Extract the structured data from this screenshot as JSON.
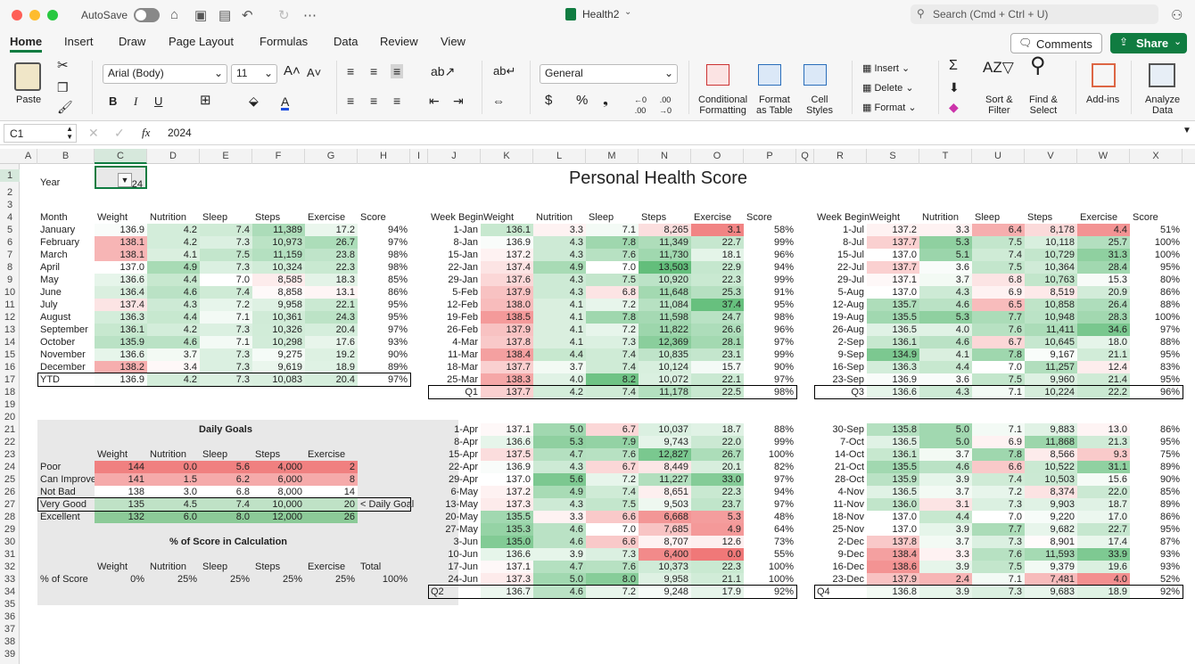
{
  "titlebar": {
    "autosave": "AutoSave",
    "doc": "Health2",
    "search": "Search (Cmd + Ctrl + U)"
  },
  "tabs": [
    "Home",
    "Insert",
    "Draw",
    "Page Layout",
    "Formulas",
    "Data",
    "Review",
    "View"
  ],
  "buttons": {
    "comments": "Comments",
    "share": "Share"
  },
  "ribbon": {
    "paste": "Paste",
    "font": "Arial (Body)",
    "size": "11",
    "number_format": "General",
    "cond1": "Conditional",
    "cond2": "Formatting",
    "fmt1": "Format",
    "fmt2": "as Table",
    "cell1": "Cell",
    "cell2": "Styles",
    "insert": "Insert",
    "delete": "Delete",
    "format": "Format",
    "sort1": "Sort &",
    "sort2": "Filter",
    "find1": "Find &",
    "find2": "Select",
    "addins": "Add-ins",
    "analyze1": "Analyze",
    "analyze2": "Data"
  },
  "formula": {
    "cell": "C1",
    "fx": "fx",
    "value": "2024"
  },
  "columns": [
    "A",
    "B",
    "C",
    "D",
    "E",
    "F",
    "G",
    "H",
    "I",
    "J",
    "K",
    "L",
    "M",
    "N",
    "O",
    "P",
    "Q",
    "R",
    "S",
    "T",
    "U",
    "V",
    "W",
    "X"
  ],
  "sheet": {
    "year_label": "Year",
    "year_value": "2024",
    "title": "Personal Health Score",
    "headers": [
      "Month",
      "Weight",
      "Nutrition",
      "Sleep",
      "Steps",
      "Exercise",
      "Score"
    ],
    "week_headers": [
      "Week Begin",
      "Weight",
      "Nutrition",
      "Sleep",
      "Steps",
      "Exercise",
      "Score"
    ],
    "months": [
      [
        "January",
        "136.9",
        "4.2",
        "7.4",
        "11,389",
        "17.2",
        "94%"
      ],
      [
        "February",
        "138.1",
        "4.2",
        "7.3",
        "10,973",
        "26.7",
        "97%"
      ],
      [
        "March",
        "138.1",
        "4.1",
        "7.5",
        "11,159",
        "23.8",
        "98%"
      ],
      [
        "April",
        "137.0",
        "4.9",
        "7.3",
        "10,324",
        "22.3",
        "98%"
      ],
      [
        "May",
        "136.6",
        "4.4",
        "7.0",
        "8,585",
        "18.3",
        "85%"
      ],
      [
        "June",
        "136.4",
        "4.6",
        "7.4",
        "8,858",
        "13.1",
        "86%"
      ],
      [
        "July",
        "137.4",
        "4.3",
        "7.2",
        "9,958",
        "22.1",
        "95%"
      ],
      [
        "August",
        "136.3",
        "4.4",
        "7.1",
        "10,361",
        "24.3",
        "95%"
      ],
      [
        "September",
        "136.1",
        "4.2",
        "7.3",
        "10,326",
        "20.4",
        "97%"
      ],
      [
        "October",
        "135.9",
        "4.6",
        "7.1",
        "10,298",
        "17.6",
        "93%"
      ],
      [
        "November",
        "136.6",
        "3.7",
        "7.3",
        "9,275",
        "19.2",
        "90%"
      ],
      [
        "December",
        "138.2",
        "3.4",
        "7.3",
        "9,619",
        "18.9",
        "89%"
      ],
      [
        "YTD",
        "136.9",
        "4.2",
        "7.3",
        "10,083",
        "20.4",
        "97%"
      ]
    ],
    "q1": [
      [
        "1-Jan",
        "136.1",
        "3.3",
        "7.1",
        "8,265",
        "3.1",
        "58%"
      ],
      [
        "8-Jan",
        "136.9",
        "4.3",
        "7.8",
        "11,349",
        "22.7",
        "99%"
      ],
      [
        "15-Jan",
        "137.2",
        "4.3",
        "7.6",
        "11,730",
        "18.1",
        "96%"
      ],
      [
        "22-Jan",
        "137.4",
        "4.9",
        "7.0",
        "13,503",
        "22.9",
        "94%"
      ],
      [
        "29-Jan",
        "137.6",
        "4.3",
        "7.5",
        "10,920",
        "22.3",
        "99%"
      ],
      [
        "5-Feb",
        "137.9",
        "4.3",
        "6.8",
        "11,648",
        "25.3",
        "91%"
      ],
      [
        "12-Feb",
        "138.0",
        "4.1",
        "7.2",
        "11,084",
        "37.4",
        "95%"
      ],
      [
        "19-Feb",
        "138.5",
        "4.1",
        "7.8",
        "11,598",
        "24.7",
        "98%"
      ],
      [
        "26-Feb",
        "137.9",
        "4.1",
        "7.2",
        "11,822",
        "26.6",
        "96%"
      ],
      [
        "4-Mar",
        "137.8",
        "4.1",
        "7.3",
        "12,369",
        "28.1",
        "97%"
      ],
      [
        "11-Mar",
        "138.4",
        "4.4",
        "7.4",
        "10,835",
        "23.1",
        "99%"
      ],
      [
        "18-Mar",
        "137.7",
        "3.7",
        "7.4",
        "10,124",
        "15.7",
        "90%"
      ],
      [
        "25-Mar",
        "138.3",
        "4.0",
        "8.2",
        "10,072",
        "22.1",
        "97%"
      ],
      [
        "Q1",
        "137.7",
        "4.2",
        "7.4",
        "11,178",
        "22.5",
        "98%"
      ]
    ],
    "q2": [
      [
        "1-Apr",
        "137.1",
        "5.0",
        "6.7",
        "10,037",
        "18.7",
        "88%"
      ],
      [
        "8-Apr",
        "136.6",
        "5.3",
        "7.9",
        "9,743",
        "22.0",
        "99%"
      ],
      [
        "15-Apr",
        "137.5",
        "4.7",
        "7.6",
        "12,827",
        "26.7",
        "100%"
      ],
      [
        "22-Apr",
        "136.9",
        "4.3",
        "6.7",
        "8,449",
        "20.1",
        "82%"
      ],
      [
        "29-Apr",
        "137.0",
        "5.6",
        "7.2",
        "11,227",
        "33.0",
        "97%"
      ],
      [
        "6-May",
        "137.2",
        "4.9",
        "7.4",
        "8,651",
        "22.3",
        "94%"
      ],
      [
        "13-May",
        "137.3",
        "4.3",
        "7.5",
        "9,503",
        "23.7",
        "97%"
      ],
      [
        "20-May",
        "135.5",
        "3.3",
        "6.6",
        "6,668",
        "5.3",
        "48%"
      ],
      [
        "27-May",
        "135.3",
        "4.6",
        "7.0",
        "7,685",
        "4.9",
        "64%"
      ],
      [
        "3-Jun",
        "135.0",
        "4.6",
        "6.6",
        "8,707",
        "12.6",
        "73%"
      ],
      [
        "10-Jun",
        "136.6",
        "3.9",
        "7.3",
        "6,400",
        "0.0",
        "55%"
      ],
      [
        "17-Jun",
        "137.1",
        "4.7",
        "7.6",
        "10,373",
        "22.3",
        "100%"
      ],
      [
        "24-Jun",
        "137.3",
        "5.0",
        "8.0",
        "9,958",
        "21.1",
        "100%"
      ],
      [
        "Q2",
        "136.7",
        "4.6",
        "7.2",
        "9,248",
        "17.9",
        "92%"
      ]
    ],
    "q3": [
      [
        "1-Jul",
        "137.2",
        "3.3",
        "6.4",
        "8,178",
        "4.4",
        "51%"
      ],
      [
        "8-Jul",
        "137.7",
        "5.3",
        "7.5",
        "10,118",
        "25.7",
        "100%"
      ],
      [
        "15-Jul",
        "137.0",
        "5.1",
        "7.4",
        "10,729",
        "31.3",
        "100%"
      ],
      [
        "22-Jul",
        "137.7",
        "3.6",
        "7.5",
        "10,364",
        "28.4",
        "95%"
      ],
      [
        "29-Jul",
        "137.1",
        "3.7",
        "6.8",
        "10,763",
        "15.3",
        "80%"
      ],
      [
        "5-Aug",
        "137.0",
        "4.3",
        "6.9",
        "8,519",
        "20.9",
        "86%"
      ],
      [
        "12-Aug",
        "135.7",
        "4.6",
        "6.5",
        "10,858",
        "26.4",
        "88%"
      ],
      [
        "19-Aug",
        "135.5",
        "5.3",
        "7.7",
        "10,948",
        "28.3",
        "100%"
      ],
      [
        "26-Aug",
        "136.5",
        "4.0",
        "7.6",
        "11,411",
        "34.6",
        "97%"
      ],
      [
        "2-Sep",
        "136.1",
        "4.6",
        "6.7",
        "10,645",
        "18.0",
        "88%"
      ],
      [
        "9-Sep",
        "134.9",
        "4.1",
        "7.8",
        "9,167",
        "21.1",
        "95%"
      ],
      [
        "16-Sep",
        "136.3",
        "4.4",
        "7.0",
        "11,257",
        "12.4",
        "83%"
      ],
      [
        "23-Sep",
        "136.9",
        "3.6",
        "7.5",
        "9,960",
        "21.4",
        "95%"
      ],
      [
        "Q3",
        "136.6",
        "4.3",
        "7.1",
        "10,224",
        "22.2",
        "96%"
      ]
    ],
    "q4": [
      [
        "30-Sep",
        "135.8",
        "5.0",
        "7.1",
        "9,883",
        "13.0",
        "86%"
      ],
      [
        "7-Oct",
        "136.5",
        "5.0",
        "6.9",
        "11,868",
        "21.3",
        "95%"
      ],
      [
        "14-Oct",
        "136.1",
        "3.7",
        "7.8",
        "8,566",
        "9.3",
        "75%"
      ],
      [
        "21-Oct",
        "135.5",
        "4.6",
        "6.6",
        "10,522",
        "31.1",
        "89%"
      ],
      [
        "28-Oct",
        "135.9",
        "3.9",
        "7.4",
        "10,503",
        "15.6",
        "90%"
      ],
      [
        "4-Nov",
        "136.5",
        "3.7",
        "7.2",
        "8,374",
        "22.0",
        "85%"
      ],
      [
        "11-Nov",
        "136.0",
        "3.1",
        "7.3",
        "9,903",
        "18.7",
        "89%"
      ],
      [
        "18-Nov",
        "137.0",
        "4.4",
        "7.0",
        "9,220",
        "17.0",
        "86%"
      ],
      [
        "25-Nov",
        "137.0",
        "3.9",
        "7.7",
        "9,682",
        "22.7",
        "95%"
      ],
      [
        "2-Dec",
        "137.8",
        "3.7",
        "7.3",
        "8,901",
        "17.4",
        "87%"
      ],
      [
        "9-Dec",
        "138.4",
        "3.3",
        "7.6",
        "11,593",
        "33.9",
        "93%"
      ],
      [
        "16-Dec",
        "138.6",
        "3.9",
        "7.5",
        "9,379",
        "19.6",
        "93%"
      ],
      [
        "23-Dec",
        "137.9",
        "2.4",
        "7.1",
        "7,481",
        "4.0",
        "52%"
      ],
      [
        "Q4",
        "136.8",
        "3.9",
        "7.3",
        "9,683",
        "18.9",
        "92%"
      ]
    ],
    "goals_title": "Daily Goals",
    "goal_headers": [
      "Weight",
      "Nutrition",
      "Sleep",
      "Steps",
      "Exercise"
    ],
    "goals": [
      [
        "Poor",
        "144",
        "0.0",
        "5.6",
        "4,000",
        "2"
      ],
      [
        "Can Improve",
        "141",
        "1.5",
        "6.2",
        "6,000",
        "8"
      ],
      [
        "Not Bad",
        "138",
        "3.0",
        "6.8",
        "8,000",
        "14"
      ],
      [
        "Very Good",
        "135",
        "4.5",
        "7.4",
        "10,000",
        "20"
      ],
      [
        "Excellent",
        "132",
        "6.0",
        "8.0",
        "12,000",
        "26"
      ]
    ],
    "daily_goal_note": "< Daily Goal",
    "pct_title": "% of Score in Calculation",
    "pct_headers": [
      "Weight",
      "Nutrition",
      "Sleep",
      "Steps",
      "Exercise",
      "Total"
    ],
    "pct_row": [
      "% of Score",
      "0%",
      "25%",
      "25%",
      "25%",
      "25%",
      "100%"
    ]
  }
}
